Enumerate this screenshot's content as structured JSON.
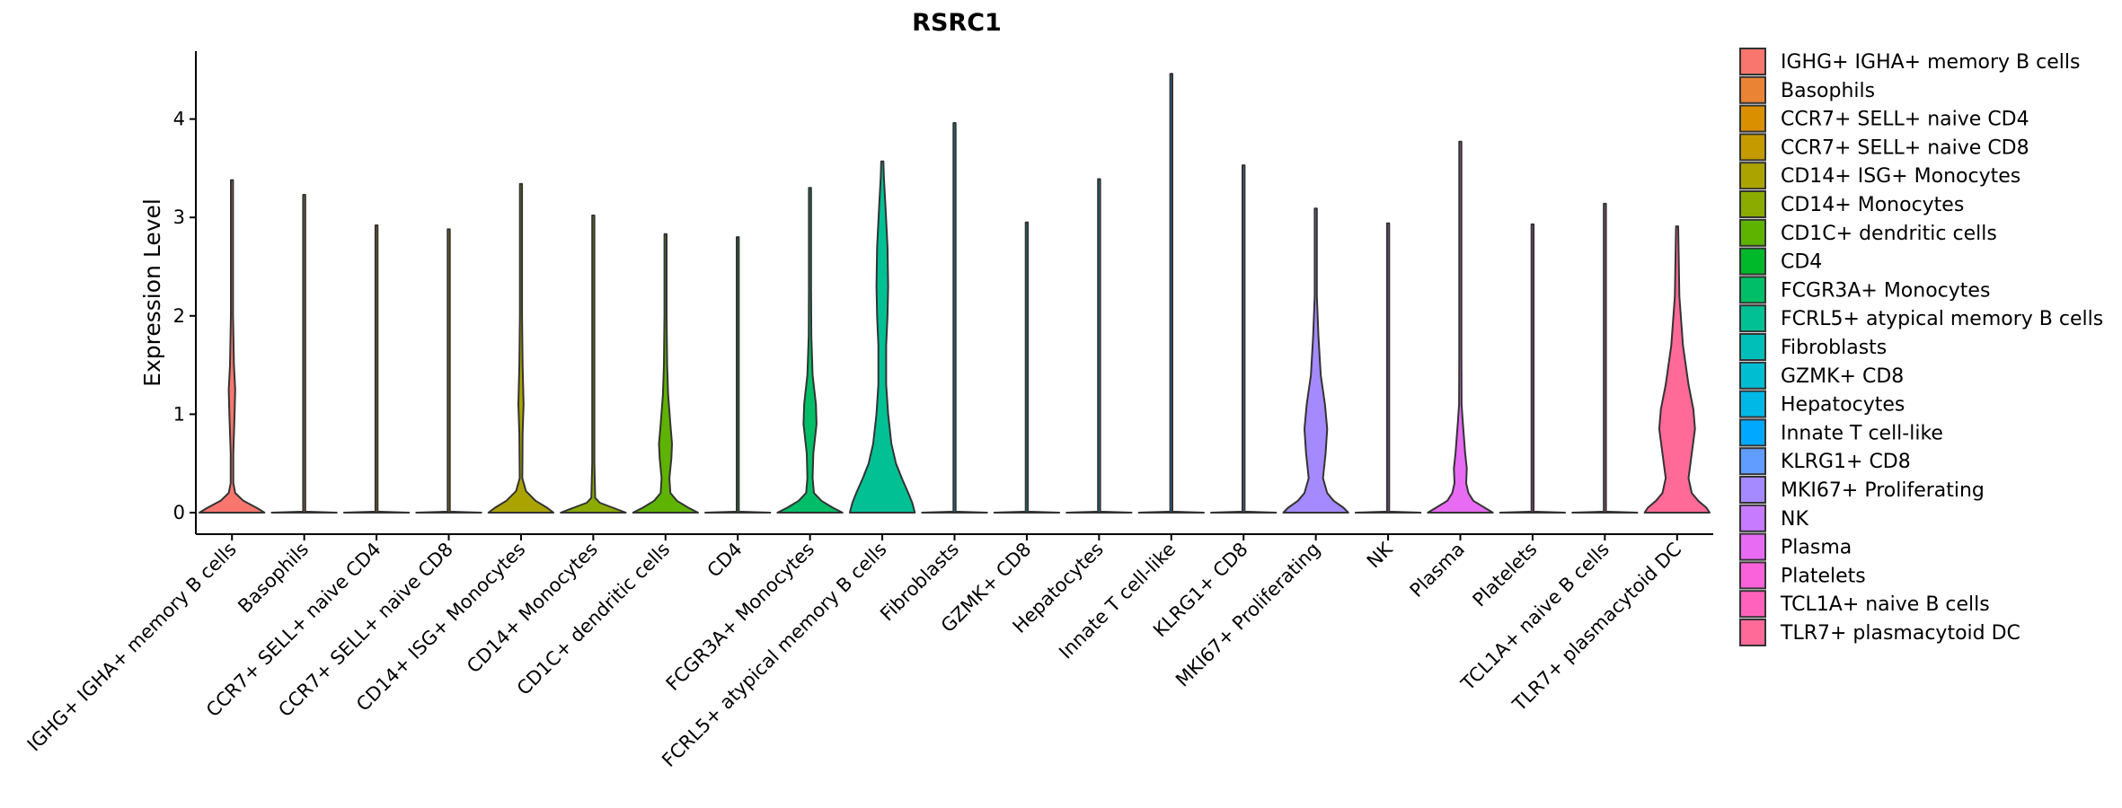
{
  "chart_data": {
    "type": "violin",
    "title": "RSRC1",
    "xlabel": "",
    "ylabel": "Expression Level",
    "ylim": [
      -0.22,
      4.7
    ],
    "yticks": [
      0,
      1,
      2,
      3,
      4
    ],
    "grid": false,
    "legend_position": "right",
    "categories": [
      "IGHG+ IGHA+ memory B cells",
      "Basophils",
      "CCR7+ SELL+ naive CD4",
      "CCR7+ SELL+ naive CD8",
      "CD14+ ISG+ Monocytes",
      "CD14+ Monocytes",
      "CD1C+ dendritic cells",
      "CD4",
      "FCGR3A+ Monocytes",
      "FCRL5+ atypical memory B cells",
      "Fibroblasts",
      "GZMK+ CD8",
      "Hepatocytes",
      "Innate T cell-like",
      "KLRG1+ CD8",
      "MKI67+ Proliferating",
      "NK",
      "Plasma",
      "Platelets",
      "TCL1A+ naive B cells",
      "TLR7+ plasmacytoid DC"
    ],
    "legend_labels": [
      " IGHG+ IGHA+ memory B cells",
      "Basophils",
      "CCR7+ SELL+ naive CD4",
      "CCR7+ SELL+ naive CD8",
      "CD14+ ISG+ Monocytes",
      "CD14+ Monocytes",
      "CD1C+ dendritic cells",
      "CD4",
      "FCGR3A+ Monocytes",
      "FCRL5+ atypical memory B cells",
      "Fibroblasts",
      "GZMK+ CD8",
      "Hepatocytes",
      "Innate T cell-like",
      "KLRG1+ CD8",
      "MKI67+ Proliferating",
      "NK",
      "Plasma",
      "Platelets",
      "TCL1A+ naive B cells",
      "TLR7+ plasmacytoid DC"
    ],
    "colors": [
      "#F8766D",
      "#EB8335",
      "#DA8F00",
      "#C49A00",
      "#ABA300",
      "#8BAB00",
      "#5EB300",
      "#00B92A",
      "#00BE67",
      "#00C094",
      "#00BFB9",
      "#00BDD2",
      "#00B8E5",
      "#00A9FF",
      "#619CFF",
      "#A58AFF",
      "#C77CFF",
      "#E76BF3",
      "#FA62DB",
      "#FF62BC",
      "#FF6A98"
    ],
    "max_values": [
      3.38,
      3.23,
      2.92,
      2.88,
      3.34,
      3.02,
      2.83,
      2.8,
      3.3,
      3.57,
      3.96,
      2.95,
      3.39,
      4.46,
      3.53,
      3.09,
      2.94,
      3.77,
      2.93,
      3.14,
      2.91
    ],
    "density_profiles": [
      [
        [
          0,
          1
        ],
        [
          0.05,
          0.75
        ],
        [
          0.12,
          0.35
        ],
        [
          0.2,
          0.1
        ],
        [
          0.3,
          0.04
        ],
        [
          0.6,
          0.04
        ],
        [
          1.0,
          0.08
        ],
        [
          1.25,
          0.1
        ],
        [
          1.5,
          0.06
        ],
        [
          2.0,
          0.02
        ],
        [
          3.38,
          0.01
        ]
      ],
      [
        [
          0,
          1
        ],
        [
          0.01,
          0.01
        ],
        [
          3.23,
          0.01
        ]
      ],
      [
        [
          0,
          1
        ],
        [
          0.01,
          0.01
        ],
        [
          2.92,
          0.01
        ]
      ],
      [
        [
          0,
          1
        ],
        [
          0.01,
          0.01
        ],
        [
          2.88,
          0.01
        ]
      ],
      [
        [
          0,
          1
        ],
        [
          0.05,
          0.8
        ],
        [
          0.12,
          0.45
        ],
        [
          0.22,
          0.15
        ],
        [
          0.35,
          0.04
        ],
        [
          0.8,
          0.05
        ],
        [
          1.1,
          0.08
        ],
        [
          1.5,
          0.05
        ],
        [
          2.0,
          0.02
        ],
        [
          3.34,
          0.01
        ]
      ],
      [
        [
          0,
          1
        ],
        [
          0.05,
          0.6
        ],
        [
          0.1,
          0.2
        ],
        [
          0.15,
          0.06
        ],
        [
          0.5,
          0.03
        ],
        [
          1.0,
          0.03
        ],
        [
          1.5,
          0.02
        ],
        [
          3.02,
          0.01
        ]
      ],
      [
        [
          0,
          1
        ],
        [
          0.05,
          0.7
        ],
        [
          0.12,
          0.35
        ],
        [
          0.2,
          0.15
        ],
        [
          0.35,
          0.12
        ],
        [
          0.55,
          0.18
        ],
        [
          0.7,
          0.2
        ],
        [
          0.9,
          0.15
        ],
        [
          1.2,
          0.08
        ],
        [
          1.5,
          0.05
        ],
        [
          2.0,
          0.015
        ],
        [
          2.83,
          0.01
        ]
      ],
      [
        [
          0,
          1
        ],
        [
          0.01,
          0.01
        ],
        [
          2.8,
          0.01
        ]
      ],
      [
        [
          0,
          1
        ],
        [
          0.05,
          0.7
        ],
        [
          0.12,
          0.35
        ],
        [
          0.2,
          0.12
        ],
        [
          0.35,
          0.08
        ],
        [
          0.6,
          0.1
        ],
        [
          0.9,
          0.2
        ],
        [
          1.1,
          0.18
        ],
        [
          1.4,
          0.08
        ],
        [
          1.8,
          0.04
        ],
        [
          2.3,
          0.02
        ],
        [
          3.3,
          0.01
        ]
      ],
      [
        [
          0,
          1
        ],
        [
          0.1,
          0.92
        ],
        [
          0.2,
          0.8
        ],
        [
          0.35,
          0.6
        ],
        [
          0.5,
          0.42
        ],
        [
          0.7,
          0.28
        ],
        [
          1.0,
          0.18
        ],
        [
          1.3,
          0.12
        ],
        [
          1.7,
          0.12
        ],
        [
          2.0,
          0.16
        ],
        [
          2.3,
          0.18
        ],
        [
          2.7,
          0.16
        ],
        [
          3.1,
          0.1
        ],
        [
          3.4,
          0.05
        ],
        [
          3.57,
          0.01
        ]
      ],
      [
        [
          0,
          1
        ],
        [
          0.01,
          0.01
        ],
        [
          3.96,
          0.01
        ]
      ],
      [
        [
          0,
          1
        ],
        [
          0.01,
          0.01
        ],
        [
          2.95,
          0.01
        ]
      ],
      [
        [
          0,
          1
        ],
        [
          0.01,
          0.01
        ],
        [
          3.39,
          0.01
        ]
      ],
      [
        [
          0,
          1
        ],
        [
          0.01,
          0.01
        ],
        [
          4.46,
          0.01
        ]
      ],
      [
        [
          0,
          1
        ],
        [
          0.01,
          0.01
        ],
        [
          3.53,
          0.01
        ]
      ],
      [
        [
          0,
          1
        ],
        [
          0.05,
          0.85
        ],
        [
          0.12,
          0.55
        ],
        [
          0.2,
          0.35
        ],
        [
          0.35,
          0.22
        ],
        [
          0.6,
          0.3
        ],
        [
          0.85,
          0.35
        ],
        [
          1.1,
          0.28
        ],
        [
          1.4,
          0.15
        ],
        [
          1.8,
          0.08
        ],
        [
          2.2,
          0.03
        ],
        [
          3.09,
          0.01
        ]
      ],
      [
        [
          0,
          1
        ],
        [
          0.01,
          0.01
        ],
        [
          2.94,
          0.01
        ]
      ],
      [
        [
          0,
          1
        ],
        [
          0.05,
          0.75
        ],
        [
          0.12,
          0.4
        ],
        [
          0.2,
          0.25
        ],
        [
          0.3,
          0.18
        ],
        [
          0.45,
          0.2
        ],
        [
          0.6,
          0.15
        ],
        [
          0.9,
          0.08
        ],
        [
          1.1,
          0.04
        ],
        [
          1.6,
          0.02
        ],
        [
          3.77,
          0.01
        ]
      ],
      [
        [
          0,
          1
        ],
        [
          0.01,
          0.01
        ],
        [
          2.93,
          0.01
        ]
      ],
      [
        [
          0,
          1
        ],
        [
          0.01,
          0.01
        ],
        [
          3.14,
          0.01
        ]
      ],
      [
        [
          0,
          1
        ],
        [
          0.05,
          0.9
        ],
        [
          0.12,
          0.65
        ],
        [
          0.2,
          0.45
        ],
        [
          0.35,
          0.35
        ],
        [
          0.6,
          0.45
        ],
        [
          0.85,
          0.55
        ],
        [
          1.05,
          0.5
        ],
        [
          1.3,
          0.35
        ],
        [
          1.7,
          0.18
        ],
        [
          2.2,
          0.07
        ],
        [
          2.91,
          0.01
        ]
      ]
    ]
  }
}
